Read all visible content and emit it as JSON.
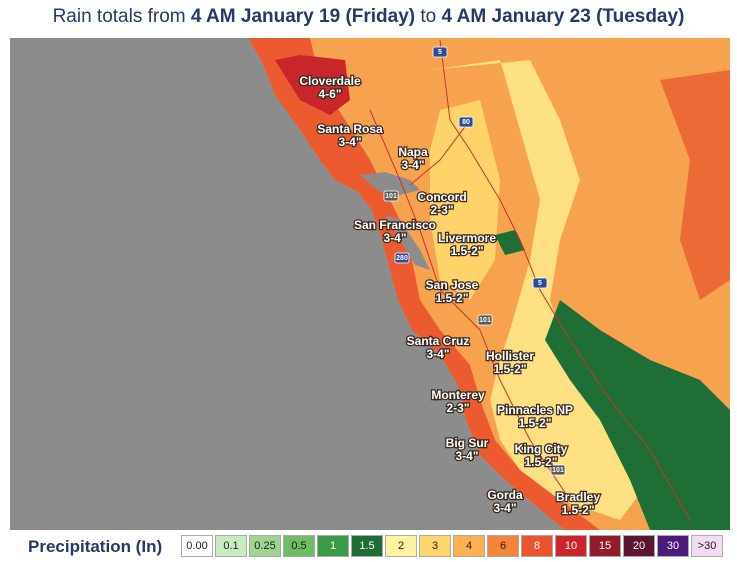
{
  "title": {
    "prefix": "Rain totals from ",
    "start": "4 AM January 19 (Friday)",
    "middle": " to ",
    "end": "4 AM January 23 (Tuesday)"
  },
  "places": [
    {
      "name": "Cloverdale",
      "amount": "4-6\""
    },
    {
      "name": "Santa Rosa",
      "amount": "3-4\""
    },
    {
      "name": "Napa",
      "amount": "3-4\""
    },
    {
      "name": "Concord",
      "amount": "2-3\""
    },
    {
      "name": "San Francisco",
      "amount": "3-4\""
    },
    {
      "name": "Livermore",
      "amount": "1.5-2\""
    },
    {
      "name": "San Jose",
      "amount": "1.5-2\""
    },
    {
      "name": "Santa Cruz",
      "amount": "3-4\""
    },
    {
      "name": "Hollister",
      "amount": "1.5-2\""
    },
    {
      "name": "Monterey",
      "amount": "2-3\""
    },
    {
      "name": "Pinnacles NP",
      "amount": "1.5-2\""
    },
    {
      "name": "King City",
      "amount": "1.5-2\""
    },
    {
      "name": "Big Sur",
      "amount": "3-4\""
    },
    {
      "name": "Gorda",
      "amount": "3-4\""
    },
    {
      "name": "Bradley",
      "amount": "1.5-2\""
    }
  ],
  "highways": [
    "5",
    "80",
    "101",
    "280",
    "5",
    "101",
    "101"
  ],
  "legend": {
    "title": "Precipitation (In)",
    "items": [
      {
        "label": "0.00",
        "color": "#ffffff"
      },
      {
        "label": "0.1",
        "color": "#c9ebc0"
      },
      {
        "label": "0.25",
        "color": "#9fd590"
      },
      {
        "label": "0.5",
        "color": "#6cbd64"
      },
      {
        "label": "1",
        "color": "#3b9a45"
      },
      {
        "label": "1.5",
        "color": "#1d6e34"
      },
      {
        "label": "2",
        "color": "#fff3a0"
      },
      {
        "label": "3",
        "color": "#fdd66c"
      },
      {
        "label": "4",
        "color": "#fbb14f"
      },
      {
        "label": "6",
        "color": "#f5853a"
      },
      {
        "label": "8",
        "color": "#e9532d"
      },
      {
        "label": "10",
        "color": "#c8262c"
      },
      {
        "label": "15",
        "color": "#931c2c"
      },
      {
        "label": "20",
        "color": "#5b1530"
      },
      {
        "label": "30",
        "color": "#4b1a7a"
      },
      {
        "label": ">30",
        "color": "#f5dcf5"
      }
    ]
  }
}
